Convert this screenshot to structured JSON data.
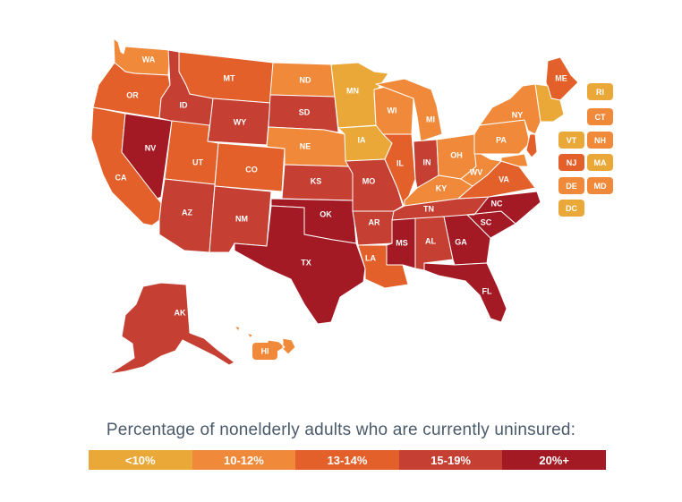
{
  "colors": {
    "c1": "#eaa838",
    "c2": "#f08a3a",
    "c3": "#e3602a",
    "c4": "#c63f33",
    "c5": "#a31a25"
  },
  "states": [
    {
      "id": "WA",
      "label": "WA",
      "class": "c2"
    },
    {
      "id": "OR",
      "label": "OR",
      "class": "c3"
    },
    {
      "id": "CA",
      "label": "CA",
      "class": "c3"
    },
    {
      "id": "NV",
      "label": "NV",
      "class": "c5"
    },
    {
      "id": "ID",
      "label": "ID",
      "class": "c4"
    },
    {
      "id": "MT",
      "label": "MT",
      "class": "c3"
    },
    {
      "id": "WY",
      "label": "WY",
      "class": "c4"
    },
    {
      "id": "UT",
      "label": "UT",
      "class": "c3"
    },
    {
      "id": "CO",
      "label": "CO",
      "class": "c3"
    },
    {
      "id": "AZ",
      "label": "AZ",
      "class": "c4"
    },
    {
      "id": "NM",
      "label": "NM",
      "class": "c4"
    },
    {
      "id": "ND",
      "label": "ND",
      "class": "c2"
    },
    {
      "id": "SD",
      "label": "SD",
      "class": "c4"
    },
    {
      "id": "NE",
      "label": "NE",
      "class": "c2"
    },
    {
      "id": "KS",
      "label": "KS",
      "class": "c4"
    },
    {
      "id": "OK",
      "label": "OK",
      "class": "c5"
    },
    {
      "id": "TX",
      "label": "TX",
      "class": "c5"
    },
    {
      "id": "MN",
      "label": "MN",
      "class": "c1"
    },
    {
      "id": "IA",
      "label": "IA",
      "class": "c1"
    },
    {
      "id": "MO",
      "label": "MO",
      "class": "c4"
    },
    {
      "id": "AR",
      "label": "AR",
      "class": "c4"
    },
    {
      "id": "LA",
      "label": "LA",
      "class": "c3"
    },
    {
      "id": "WI",
      "label": "WI",
      "class": "c2"
    },
    {
      "id": "IL",
      "label": "IL",
      "class": "c3"
    },
    {
      "id": "MI",
      "label": "MI",
      "class": "c2"
    },
    {
      "id": "IN",
      "label": "IN",
      "class": "c4"
    },
    {
      "id": "OH",
      "label": "OH",
      "class": "c2"
    },
    {
      "id": "KY",
      "label": "KY",
      "class": "c2"
    },
    {
      "id": "TN",
      "label": "TN",
      "class": "c4"
    },
    {
      "id": "MS",
      "label": "MS",
      "class": "c5"
    },
    {
      "id": "AL",
      "label": "AL",
      "class": "c4"
    },
    {
      "id": "GA",
      "label": "GA",
      "class": "c5"
    },
    {
      "id": "FL",
      "label": "FL",
      "class": "c5"
    },
    {
      "id": "SC",
      "label": "SC",
      "class": "c5"
    },
    {
      "id": "NC",
      "label": "NC",
      "class": "c5"
    },
    {
      "id": "VA",
      "label": "VA",
      "class": "c3"
    },
    {
      "id": "WV",
      "label": "WV",
      "class": "c2"
    },
    {
      "id": "PA",
      "label": "PA",
      "class": "c2"
    },
    {
      "id": "NY",
      "label": "NY",
      "class": "c2"
    },
    {
      "id": "ME",
      "label": "ME",
      "class": "c3"
    },
    {
      "id": "AK",
      "label": "AK",
      "class": "c4"
    },
    {
      "id": "HI",
      "label": "HI",
      "class": "c2"
    }
  ],
  "small_states": [
    {
      "label": "RI",
      "class": "c1"
    },
    {
      "label": "CT",
      "class": "c2"
    },
    {
      "label": "VT",
      "class": "c1"
    },
    {
      "label": "NH",
      "class": "c2"
    },
    {
      "label": "NJ",
      "class": "c3"
    },
    {
      "label": "MA",
      "class": "c1"
    },
    {
      "label": "DE",
      "class": "c2"
    },
    {
      "label": "MD",
      "class": "c2"
    },
    {
      "label": "DC",
      "class": "c1"
    }
  ],
  "legend": {
    "title": "Percentage of nonelderly adults who are currently uninsured:",
    "items": [
      {
        "label": "<10%",
        "class": "c1"
      },
      {
        "label": "10-12%",
        "class": "c2"
      },
      {
        "label": "13-14%",
        "class": "c3"
      },
      {
        "label": "15-19%",
        "class": "c4"
      },
      {
        "label": "20%+",
        "class": "c5"
      }
    ]
  }
}
